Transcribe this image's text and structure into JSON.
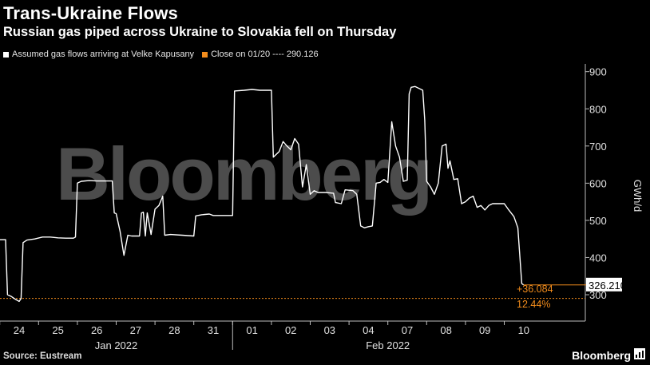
{
  "title": "Trans-Ukraine Flows",
  "subtitle": "Russian gas piped across Ukraine to Slovakia fell on Thursday",
  "legend": {
    "series_label": "Assumed gas flows arriving at Velke Kapusany",
    "close_label": "Close on 01/20 ---- 290.126"
  },
  "source": "Source: Eustream",
  "brand": "Bloomberg",
  "watermark": "Bloomberg",
  "colors": {
    "series": "#ffffff",
    "reference": "#f28c1c",
    "background": "#000000"
  },
  "annotations": {
    "last_value": "326.210",
    "change_abs": "+36.084",
    "change_pct": "12.44%"
  },
  "chart_data": {
    "type": "line",
    "ylabel": "GWh/d",
    "ylim": [
      225,
      910
    ],
    "yticks": [
      300,
      400,
      500,
      600,
      700,
      800,
      900
    ],
    "y_axis_side": "right",
    "grid": false,
    "legend_position": "top-left",
    "x_ticks": [
      {
        "day": 0,
        "label": "24"
      },
      {
        "day": 1,
        "label": "25"
      },
      {
        "day": 2,
        "label": "26"
      },
      {
        "day": 3,
        "label": "27"
      },
      {
        "day": 4,
        "label": "28"
      },
      {
        "day": 5,
        "label": "31"
      },
      {
        "day": 6,
        "label": "01"
      },
      {
        "day": 7,
        "label": "02"
      },
      {
        "day": 8,
        "label": "03"
      },
      {
        "day": 9,
        "label": "04"
      },
      {
        "day": 10,
        "label": "07"
      },
      {
        "day": 11,
        "label": "08"
      },
      {
        "day": 12,
        "label": "09"
      },
      {
        "day": 13,
        "label": "10"
      }
    ],
    "months": [
      {
        "label": "Jan 2022",
        "center_day": 2.5
      },
      {
        "label": "Feb 2022",
        "center_day": 9.5
      }
    ],
    "month_divider_day": 5.5,
    "reference": {
      "name": "Close on 01/20",
      "value": 290.126
    },
    "last": {
      "day": 13,
      "value": 326.21
    },
    "series": [
      {
        "name": "Assumed gas flows arriving at Velke Kapusany",
        "points": [
          [
            -0.5,
            448
          ],
          [
            -0.35,
            448
          ],
          [
            -0.3,
            300
          ],
          [
            -0.2,
            295
          ],
          [
            -0.1,
            288
          ],
          [
            -0.05,
            285
          ],
          [
            0.0,
            282
          ],
          [
            0.05,
            290
          ],
          [
            0.1,
            440
          ],
          [
            0.2,
            447
          ],
          [
            0.4,
            450
          ],
          [
            0.6,
            455
          ],
          [
            0.8,
            455
          ],
          [
            1.0,
            453
          ],
          [
            1.2,
            452
          ],
          [
            1.4,
            452
          ],
          [
            1.45,
            455
          ],
          [
            1.5,
            600
          ],
          [
            1.6,
            605
          ],
          [
            1.8,
            607
          ],
          [
            2.0,
            606
          ],
          [
            2.2,
            606
          ],
          [
            2.4,
            606
          ],
          [
            2.45,
            520
          ],
          [
            2.5,
            518
          ],
          [
            2.6,
            470
          ],
          [
            2.7,
            406
          ],
          [
            2.8,
            460
          ],
          [
            2.9,
            458
          ],
          [
            3.1,
            458
          ],
          [
            3.15,
            520
          ],
          [
            3.2,
            522
          ],
          [
            3.25,
            458
          ],
          [
            3.3,
            520
          ],
          [
            3.4,
            462
          ],
          [
            3.5,
            530
          ],
          [
            3.6,
            540
          ],
          [
            3.7,
            565
          ],
          [
            3.75,
            460
          ],
          [
            3.9,
            462
          ],
          [
            4.2,
            460
          ],
          [
            4.5,
            458
          ],
          [
            4.55,
            512
          ],
          [
            4.7,
            515
          ],
          [
            4.9,
            517
          ],
          [
            5.0,
            513
          ],
          [
            5.2,
            513
          ],
          [
            5.5,
            513
          ],
          [
            5.55,
            848
          ],
          [
            5.8,
            850
          ],
          [
            6.0,
            852
          ],
          [
            6.2,
            850
          ],
          [
            6.5,
            850
          ],
          [
            6.55,
            670
          ],
          [
            6.7,
            685
          ],
          [
            6.8,
            712
          ],
          [
            6.9,
            700
          ],
          [
            7.0,
            690
          ],
          [
            7.1,
            720
          ],
          [
            7.2,
            705
          ],
          [
            7.3,
            590
          ],
          [
            7.4,
            650
          ],
          [
            7.5,
            570
          ],
          [
            7.6,
            580
          ],
          [
            7.7,
            575
          ],
          [
            7.9,
            575
          ],
          [
            8.1,
            573
          ],
          [
            8.15,
            548
          ],
          [
            8.3,
            545
          ],
          [
            8.4,
            582
          ],
          [
            8.6,
            580
          ],
          [
            8.7,
            570
          ],
          [
            8.8,
            485
          ],
          [
            8.9,
            480
          ],
          [
            9.0,
            483
          ],
          [
            9.1,
            485
          ],
          [
            9.2,
            600
          ],
          [
            9.3,
            602
          ],
          [
            9.4,
            610
          ],
          [
            9.5,
            602
          ],
          [
            9.6,
            765
          ],
          [
            9.7,
            700
          ],
          [
            9.8,
            670
          ],
          [
            9.9,
            605
          ],
          [
            10.0,
            608
          ],
          [
            10.05,
            840
          ],
          [
            10.1,
            858
          ],
          [
            10.2,
            860
          ],
          [
            10.3,
            855
          ],
          [
            10.4,
            850
          ],
          [
            10.45,
            770
          ],
          [
            10.5,
            605
          ],
          [
            10.6,
            590
          ],
          [
            10.7,
            570
          ],
          [
            10.8,
            600
          ],
          [
            10.9,
            700
          ],
          [
            11.0,
            705
          ],
          [
            11.05,
            640
          ],
          [
            11.1,
            660
          ],
          [
            11.2,
            610
          ],
          [
            11.3,
            612
          ],
          [
            11.4,
            545
          ],
          [
            11.5,
            550
          ],
          [
            11.6,
            560
          ],
          [
            11.7,
            565
          ],
          [
            11.8,
            535
          ],
          [
            11.9,
            540
          ],
          [
            12.0,
            528
          ],
          [
            12.1,
            540
          ],
          [
            12.2,
            545
          ],
          [
            12.3,
            545
          ],
          [
            12.4,
            545
          ],
          [
            12.5,
            545
          ],
          [
            12.6,
            530
          ],
          [
            12.75,
            510
          ],
          [
            12.85,
            480
          ],
          [
            12.95,
            330
          ],
          [
            13.0,
            326.21
          ]
        ]
      }
    ]
  }
}
